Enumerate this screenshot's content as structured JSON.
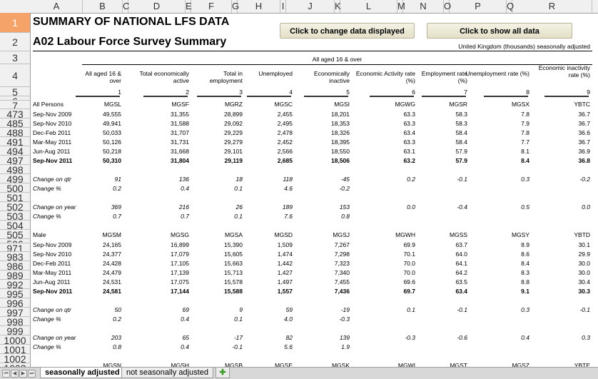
{
  "columns": [
    "A",
    "B",
    "C",
    "D",
    "E",
    "F",
    "G",
    "H",
    "I",
    "J",
    "K",
    "L",
    "M",
    "N",
    "O",
    "P",
    "Q",
    "R"
  ],
  "title": "SUMMARY OF NATIONAL LFS DATA",
  "subtitle": "A02  Labour Force Survey Summary",
  "buttons": {
    "change_data": "Click to change data displayed",
    "show_all": "Click to show all data"
  },
  "region_note": "United Kingdom (thousands) seasonally adjusted",
  "group_header": "All aged 16 & over",
  "col_headers": [
    "All aged 16 & over",
    "Total economically active",
    "Total in employment",
    "Unemployed",
    "Economically inactive",
    "Economic Activity rate (%)",
    "Employment rate (%)",
    "Unemployment rate (%)",
    "Economic inactivity rate (%)"
  ],
  "col_numbers": [
    "1",
    "2",
    "3",
    "4",
    "5",
    "6",
    "7",
    "8",
    "9"
  ],
  "row_numbers": [
    "1",
    "2",
    "3",
    "4",
    "5",
    "6",
    "7",
    "473",
    "485",
    "488",
    "491",
    "494",
    "497",
    "498",
    "499",
    "500",
    "501",
    "502",
    "503",
    "504",
    "505",
    "506",
    "971",
    "983",
    "986",
    "989",
    "992",
    "995",
    "996",
    "997",
    "998",
    "999",
    "1000",
    "1001",
    "1002",
    "1003"
  ],
  "all_persons": {
    "label": "All Persons",
    "codes": [
      "MGSL",
      "MGSF",
      "MGRZ",
      "MGSC",
      "MGSI",
      "MGWG",
      "MGSR",
      "MGSX",
      "YBTC"
    ],
    "rows": [
      {
        "period": "Sep-Nov 2009",
        "v": [
          "49,555",
          "31,355",
          "28,899",
          "2,455",
          "18,201",
          "63.3",
          "58.3",
          "7.8",
          "36.7"
        ]
      },
      {
        "period": "Sep-Nov 2010",
        "v": [
          "49,941",
          "31,588",
          "29,092",
          "2,495",
          "18,353",
          "63.3",
          "58.3",
          "7.9",
          "36.7"
        ]
      },
      {
        "period": "Dec-Feb 2011",
        "v": [
          "50,033",
          "31,707",
          "29,229",
          "2,478",
          "18,326",
          "63.4",
          "58.4",
          "7.8",
          "36.6"
        ]
      },
      {
        "period": "Mar-May 2011",
        "v": [
          "50,126",
          "31,731",
          "29,279",
          "2,452",
          "18,395",
          "63.3",
          "58.4",
          "7.7",
          "36.7"
        ]
      },
      {
        "period": "Jun-Aug 2011",
        "v": [
          "50,218",
          "31,668",
          "29,101",
          "2,566",
          "18,550",
          "63.1",
          "57.9",
          "8.1",
          "36.9"
        ]
      },
      {
        "period": "Sep-Nov 2011",
        "v": [
          "50,310",
          "31,804",
          "29,119",
          "2,685",
          "18,506",
          "63.2",
          "57.9",
          "8.4",
          "36.8"
        ]
      }
    ],
    "change_qtr": {
      "label": "Change on qtr",
      "v": [
        "91",
        "136",
        "18",
        "118",
        "-45",
        "0.2",
        "-0.1",
        "0.3",
        "-0.2"
      ]
    },
    "change_qtr_pct": {
      "label": "Change %",
      "v": [
        "0.2",
        "0.4",
        "0.1",
        "4.6",
        "-0.2",
        "",
        "",
        "",
        ""
      ]
    },
    "change_year": {
      "label": "Change on year",
      "v": [
        "369",
        "216",
        "26",
        "189",
        "153",
        "0.0",
        "-0.4",
        "0.5",
        "0.0"
      ]
    },
    "change_year_pct": {
      "label": "Change %",
      "v": [
        "0.7",
        "0.7",
        "0.1",
        "7.6",
        "0.8",
        "",
        "",
        "",
        ""
      ]
    }
  },
  "male": {
    "label": "Male",
    "codes": [
      "MGSM",
      "MGSG",
      "MGSA",
      "MGSD",
      "MGSJ",
      "MGWH",
      "MGSS",
      "MGSY",
      "YBTD"
    ],
    "rows": [
      {
        "period": "Sep-Nov 2009",
        "v": [
          "24,165",
          "16,899",
          "15,390",
          "1,509",
          "7,267",
          "69.9",
          "63.7",
          "8.9",
          "30.1"
        ]
      },
      {
        "period": "Sep-Nov 2010",
        "v": [
          "24,377",
          "17,079",
          "15,605",
          "1,474",
          "7,298",
          "70.1",
          "64.0",
          "8.6",
          "29.9"
        ]
      },
      {
        "period": "Dec-Feb 2011",
        "v": [
          "24,428",
          "17,105",
          "15,663",
          "1,442",
          "7,323",
          "70.0",
          "64.1",
          "8.4",
          "30.0"
        ]
      },
      {
        "period": "Mar-May 2011",
        "v": [
          "24,479",
          "17,139",
          "15,713",
          "1,427",
          "7,340",
          "70.0",
          "64.2",
          "8.3",
          "30.0"
        ]
      },
      {
        "period": "Jun-Aug 2011",
        "v": [
          "24,531",
          "17,075",
          "15,578",
          "1,497",
          "7,455",
          "69.6",
          "63.5",
          "8.8",
          "30.4"
        ]
      },
      {
        "period": "Sep-Nov 2011",
        "v": [
          "24,581",
          "17,144",
          "15,588",
          "1,557",
          "7,436",
          "69.7",
          "63.4",
          "9.1",
          "30.3"
        ]
      }
    ],
    "change_qtr": {
      "label": "Change on qtr",
      "v": [
        "50",
        "69",
        "9",
        "59",
        "-19",
        "0.1",
        "-0.1",
        "0.3",
        "-0.1"
      ]
    },
    "change_qtr_pct": {
      "label": "Change %",
      "v": [
        "0.2",
        "0.4",
        "0.1",
        "4.0",
        "-0.3",
        "",
        "",
        "",
        ""
      ]
    },
    "change_year": {
      "label": "Change on year",
      "v": [
        "203",
        "65",
        "-17",
        "82",
        "139",
        "-0.3",
        "-0.6",
        "0.4",
        "0.3"
      ]
    },
    "change_year_pct": {
      "label": "Change %",
      "v": [
        "0.8",
        "0.4",
        "-0.1",
        "5.6",
        "1.9",
        "",
        "",
        "",
        ""
      ]
    }
  },
  "partial_row_codes": [
    "MGSN",
    "MGSH",
    "MGSB",
    "MGSE",
    "MGSK",
    "MGWI",
    "MGST",
    "MGSZ",
    "YBTE"
  ],
  "tabs": [
    "seasonally adjusted",
    "not seasonally adjusted"
  ],
  "colors": {
    "selected_row": "#f6a36a",
    "header_bg": "#f0f0f0",
    "button_bg": "#ece8d3"
  }
}
